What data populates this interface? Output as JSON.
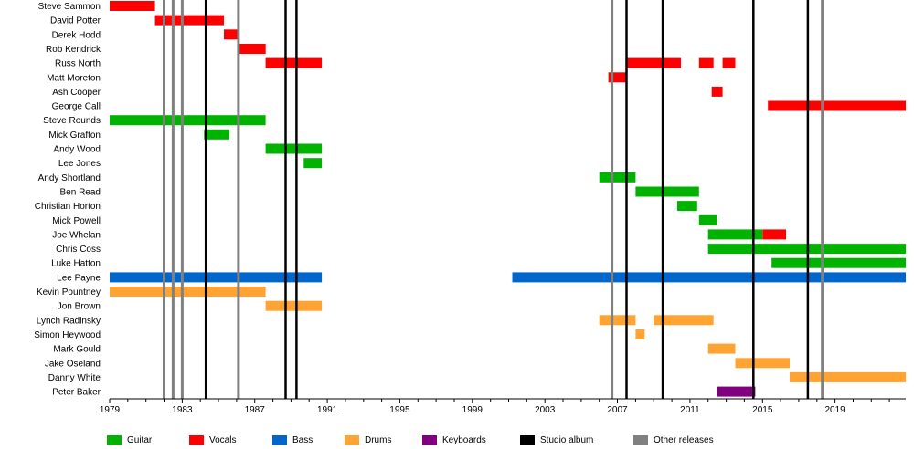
{
  "chart_data": {
    "type": "timeline",
    "title": "",
    "xlabel": "",
    "ylabel": "",
    "xlim": [
      1979,
      2022.9
    ],
    "x_ticks": [
      1979,
      1983,
      1987,
      1991,
      1995,
      1999,
      2003,
      2007,
      2011,
      2015,
      2019
    ],
    "grid": false,
    "legend_position": "bottom",
    "colors": {
      "Guitar": "#00b300",
      "Vocals": "#ff0000",
      "Bass": "#0066cc",
      "Drums": "#ffa333",
      "Keyboards": "#800080",
      "Studio album": "#000000",
      "Other releases": "#808080"
    },
    "legend": [
      "Guitar",
      "Vocals",
      "Bass",
      "Drums",
      "Keyboards",
      "Studio album",
      "Other releases"
    ],
    "studio_albums": [
      1984.3,
      1988.7,
      1989.3,
      2007.5,
      2009.5,
      2014.5,
      2017.5
    ],
    "other_releases": [
      1982.0,
      1982.5,
      1983.0,
      1986.1,
      2006.7,
      2018.3
    ],
    "members": [
      {
        "name": "Steve Sammon",
        "periods": [
          {
            "role": "Vocals",
            "start": 1979.0,
            "end": 1981.5
          }
        ]
      },
      {
        "name": "David Potter",
        "periods": [
          {
            "role": "Vocals",
            "start": 1981.5,
            "end": 1985.3
          }
        ]
      },
      {
        "name": "Derek Hodd",
        "periods": [
          {
            "role": "Vocals",
            "start": 1985.3,
            "end": 1986.1
          }
        ]
      },
      {
        "name": "Rob Kendrick",
        "periods": [
          {
            "role": "Vocals",
            "start": 1986.1,
            "end": 1987.6
          }
        ]
      },
      {
        "name": "Russ North",
        "periods": [
          {
            "role": "Vocals",
            "start": 1987.6,
            "end": 1990.7
          },
          {
            "role": "Vocals",
            "start": 2007.5,
            "end": 2010.5
          },
          {
            "role": "Vocals",
            "start": 2011.5,
            "end": 2012.3
          },
          {
            "role": "Vocals",
            "start": 2012.8,
            "end": 2013.5
          }
        ]
      },
      {
        "name": "Matt Moreton",
        "periods": [
          {
            "role": "Vocals",
            "start": 2006.5,
            "end": 2007.5
          }
        ]
      },
      {
        "name": "Ash Cooper",
        "periods": [
          {
            "role": "Vocals",
            "start": 2012.2,
            "end": 2012.8
          }
        ]
      },
      {
        "name": "George Call",
        "periods": [
          {
            "role": "Vocals",
            "start": 2015.3,
            "end": 2022.9
          }
        ]
      },
      {
        "name": "Steve Rounds",
        "periods": [
          {
            "role": "Guitar",
            "start": 1979.0,
            "end": 1987.6
          }
        ]
      },
      {
        "name": "Mick Grafton",
        "periods": [
          {
            "role": "Guitar",
            "start": 1984.2,
            "end": 1985.6
          }
        ]
      },
      {
        "name": "Andy Wood",
        "periods": [
          {
            "role": "Guitar",
            "start": 1987.6,
            "end": 1990.7
          }
        ]
      },
      {
        "name": "Lee Jones",
        "periods": [
          {
            "role": "Guitar",
            "start": 1989.7,
            "end": 1990.7
          }
        ]
      },
      {
        "name": "Andy Shortland",
        "periods": [
          {
            "role": "Guitar",
            "start": 2006.0,
            "end": 2008.0
          }
        ]
      },
      {
        "name": "Ben Read",
        "periods": [
          {
            "role": "Guitar",
            "start": 2008.0,
            "end": 2011.5
          }
        ]
      },
      {
        "name": "Christian Horton",
        "periods": [
          {
            "role": "Guitar",
            "start": 2010.3,
            "end": 2011.4
          }
        ]
      },
      {
        "name": "Mick Powell",
        "periods": [
          {
            "role": "Guitar",
            "start": 2011.5,
            "end": 2012.5
          }
        ]
      },
      {
        "name": "Joe Whelan",
        "periods": [
          {
            "role": "Guitar",
            "start": 2012.0,
            "end": 2015.0
          },
          {
            "role": "Vocals",
            "start": 2015.0,
            "end": 2016.3
          }
        ]
      },
      {
        "name": "Chris Coss",
        "periods": [
          {
            "role": "Guitar",
            "start": 2012.0,
            "end": 2022.9
          }
        ]
      },
      {
        "name": "Luke Hatton",
        "periods": [
          {
            "role": "Guitar",
            "start": 2015.5,
            "end": 2022.9
          }
        ]
      },
      {
        "name": "Lee Payne",
        "periods": [
          {
            "role": "Bass",
            "start": 1979.0,
            "end": 1990.7
          },
          {
            "role": "Bass",
            "start": 2001.2,
            "end": 2022.9
          }
        ]
      },
      {
        "name": "Kevin Pountney",
        "periods": [
          {
            "role": "Drums",
            "start": 1979.0,
            "end": 1987.6
          }
        ]
      },
      {
        "name": "Jon Brown",
        "periods": [
          {
            "role": "Drums",
            "start": 1987.6,
            "end": 1990.7
          }
        ]
      },
      {
        "name": "Lynch Radinsky",
        "periods": [
          {
            "role": "Drums",
            "start": 2006.0,
            "end": 2008.0
          },
          {
            "role": "Drums",
            "start": 2009.0,
            "end": 2012.3
          }
        ]
      },
      {
        "name": "Simon Heywood",
        "periods": [
          {
            "role": "Drums",
            "start": 2008.0,
            "end": 2008.5
          }
        ]
      },
      {
        "name": "Mark Gould",
        "periods": [
          {
            "role": "Drums",
            "start": 2012.0,
            "end": 2013.5
          }
        ]
      },
      {
        "name": "Jake Oseland",
        "periods": [
          {
            "role": "Drums",
            "start": 2013.5,
            "end": 2016.5
          }
        ]
      },
      {
        "name": "Danny White",
        "periods": [
          {
            "role": "Drums",
            "start": 2016.5,
            "end": 2022.9
          }
        ]
      },
      {
        "name": "Peter Baker",
        "periods": [
          {
            "role": "Keyboards",
            "start": 2012.5,
            "end": 2014.6
          }
        ]
      }
    ]
  }
}
